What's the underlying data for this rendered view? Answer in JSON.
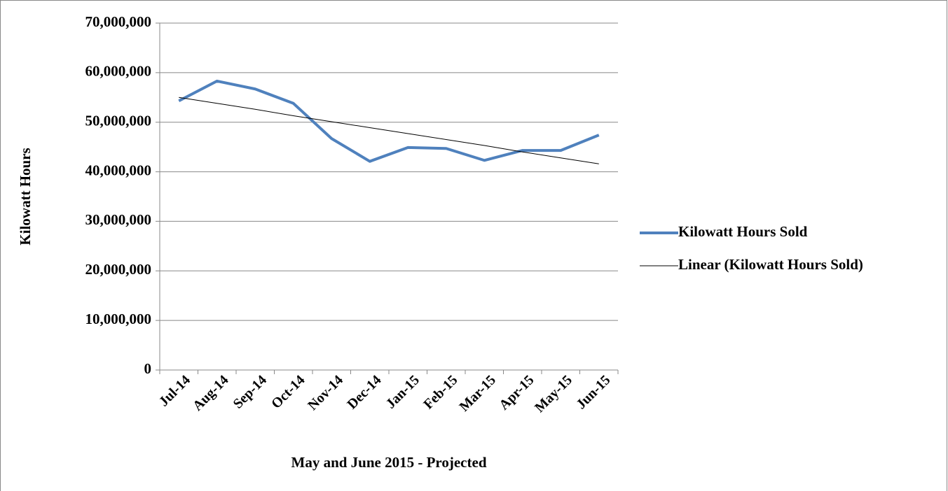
{
  "chart_data": {
    "type": "line",
    "x_label": "May and June 2015 - Projected",
    "y_label": "Kilowatt Hours",
    "categories": [
      "Jul-14",
      "Aug-14",
      "Sep-14",
      "Oct-14",
      "Nov-14",
      "Dec-14",
      "Jan-15",
      "Feb-15",
      "Mar-15",
      "Apr-15",
      "May-15",
      "Jun-15"
    ],
    "series": [
      {
        "name": "Kilowatt Hours Sold",
        "color": "#4f81bd",
        "width": 4,
        "values": [
          54300000,
          58300000,
          56700000,
          53800000,
          46700000,
          42100000,
          44900000,
          44700000,
          42300000,
          44300000,
          44300000,
          47400000
        ]
      },
      {
        "name": "Linear (Kilowatt Hours Sold)",
        "color": "#000000",
        "width": 1,
        "values": [
          55000000,
          53800000,
          52600000,
          51300000,
          50100000,
          48900000,
          47700000,
          46500000,
          45300000,
          44000000,
          42800000,
          41600000
        ]
      }
    ],
    "ylim": [
      0,
      70000000
    ],
    "yticks": [
      0,
      {
        "value": 10000000,
        "label": "10,000,000"
      },
      {
        "value": 20000000,
        "label": "20,000,000"
      },
      {
        "value": 30000000,
        "label": "30,000,000"
      },
      {
        "value": 40000000,
        "label": "40,000,000"
      },
      {
        "value": 50000000,
        "label": "50,000,000"
      },
      {
        "value": 60000000,
        "label": "60,000,000"
      },
      {
        "value": 70000000,
        "label": "70,000,000"
      }
    ],
    "grid": true,
    "legend": "right"
  }
}
